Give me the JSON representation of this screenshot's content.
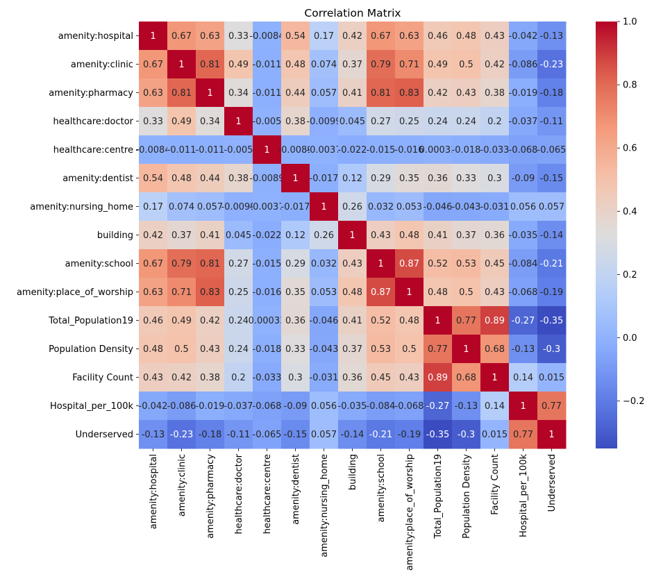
{
  "chart_data": {
    "type": "heatmap",
    "title": "Correlation Matrix",
    "xlabel": "",
    "ylabel": "",
    "colormap": "coolwarm",
    "vmin": -0.35,
    "vmax": 1.0,
    "colorbar_ticks": [
      "1.0",
      "0.8",
      "0.6",
      "0.4",
      "0.2",
      "0.0",
      "−0.2"
    ],
    "colorbar_tick_values": [
      1.0,
      0.8,
      0.6,
      0.4,
      0.2,
      0.0,
      -0.2
    ],
    "labels": [
      "amenity:hospital",
      "amenity:clinic",
      "amenity:pharmacy",
      "healthcare:doctor",
      "healthcare:centre",
      "amenity:dentist",
      "amenity:nursing_home",
      "building",
      "amenity:school",
      "amenity:place_of_worship",
      "Total_Population19",
      "Population Density",
      "Facility Count",
      "Hospital_per_100k",
      "Underserved"
    ],
    "values": [
      [
        1,
        0.67,
        0.63,
        0.33,
        -0.0084,
        0.54,
        0.17,
        0.42,
        0.67,
        0.63,
        0.46,
        0.48,
        0.43,
        -0.042,
        -0.13
      ],
      [
        0.67,
        1,
        0.81,
        0.49,
        -0.011,
        0.48,
        0.074,
        0.37,
        0.79,
        0.71,
        0.49,
        0.5,
        0.42,
        -0.086,
        -0.23
      ],
      [
        0.63,
        0.81,
        1,
        0.34,
        -0.011,
        0.44,
        0.057,
        0.41,
        0.81,
        0.83,
        0.42,
        0.43,
        0.38,
        -0.019,
        -0.18
      ],
      [
        0.33,
        0.49,
        0.34,
        1,
        -0.005,
        0.38,
        -0.0099,
        0.045,
        0.27,
        0.25,
        0.24,
        0.24,
        0.2,
        -0.037,
        -0.11
      ],
      [
        -0.0084,
        -0.011,
        -0.011,
        -0.005,
        1,
        -0.0089,
        -0.0037,
        -0.022,
        -0.015,
        -0.016,
        0.00033,
        -0.018,
        -0.033,
        -0.068,
        -0.065
      ],
      [
        0.54,
        0.48,
        0.44,
        0.38,
        -0.0089,
        1,
        -0.017,
        0.12,
        0.29,
        0.35,
        0.36,
        0.33,
        0.3,
        -0.09,
        -0.15
      ],
      [
        0.17,
        0.074,
        0.057,
        -0.0099,
        -0.0037,
        -0.017,
        1,
        0.26,
        0.032,
        0.053,
        -0.046,
        -0.043,
        -0.031,
        0.056,
        0.057
      ],
      [
        0.42,
        0.37,
        0.41,
        0.045,
        -0.022,
        0.12,
        0.26,
        1,
        0.43,
        0.48,
        0.41,
        0.37,
        0.36,
        -0.035,
        -0.14
      ],
      [
        0.67,
        0.79,
        0.81,
        0.27,
        -0.015,
        0.29,
        0.032,
        0.43,
        1,
        0.87,
        0.52,
        0.53,
        0.45,
        -0.084,
        -0.21
      ],
      [
        0.63,
        0.71,
        0.83,
        0.25,
        -0.016,
        0.35,
        0.053,
        0.48,
        0.87,
        1,
        0.48,
        0.5,
        0.43,
        -0.068,
        -0.19
      ],
      [
        0.46,
        0.49,
        0.42,
        0.24,
        0.00033,
        0.36,
        -0.046,
        0.41,
        0.52,
        0.48,
        1,
        0.77,
        0.89,
        -0.27,
        -0.35
      ],
      [
        0.48,
        0.5,
        0.43,
        0.24,
        -0.018,
        0.33,
        -0.043,
        0.37,
        0.53,
        0.5,
        0.77,
        1,
        0.68,
        -0.13,
        -0.3
      ],
      [
        0.43,
        0.42,
        0.38,
        0.2,
        -0.033,
        0.3,
        -0.031,
        0.36,
        0.45,
        0.43,
        0.89,
        0.68,
        1,
        0.14,
        0.015
      ],
      [
        -0.042,
        -0.086,
        -0.019,
        -0.037,
        -0.068,
        -0.09,
        0.056,
        -0.035,
        -0.084,
        -0.068,
        -0.27,
        -0.13,
        0.14,
        1,
        0.77
      ],
      [
        -0.13,
        -0.23,
        -0.18,
        -0.11,
        -0.065,
        -0.15,
        0.057,
        -0.14,
        -0.21,
        -0.19,
        -0.35,
        -0.3,
        0.015,
        0.77,
        1
      ]
    ]
  }
}
